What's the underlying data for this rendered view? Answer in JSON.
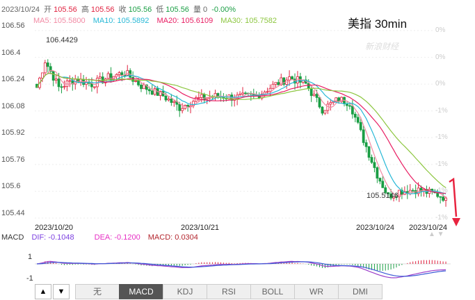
{
  "info": {
    "date": "2023/10/24",
    "open_label": "开",
    "open": "105.56",
    "high_label": "高",
    "high": "105.56",
    "close_label": "收",
    "close": "105.56",
    "low_label": "低",
    "low": "105.56",
    "vol_label": "量",
    "vol": "0",
    "change": "-0.00%"
  },
  "title": "美指 30min",
  "watermark": "新浪财经",
  "ma": {
    "ma5": "MA5: 105.5800",
    "ma10": "MA10: 105.5892",
    "ma20": "MA20: 105.6109",
    "ma30": "MA30: 105.7582"
  },
  "annotations": {
    "high": "106.4429",
    "low": "105.5146"
  },
  "x_labels": [
    "2023/10/20",
    "2023/10/21",
    "2023/10/24",
    "2023/10/24"
  ],
  "macd_legend": {
    "macd_label": "MACD",
    "dif": "DIF: -0.1048",
    "dea": "DEA: -0.1200",
    "macd": "MACD: 0.0304"
  },
  "macd_axis": [
    "1",
    "-1"
  ],
  "tabs": [
    "无",
    "MACD",
    "KDJ",
    "RSI",
    "BOLL",
    "WR",
    "DMI"
  ],
  "active_tab": "MACD",
  "colors": {
    "up": "#e0213f",
    "down": "#1a9e44",
    "ma5": "#f28aa4",
    "ma10": "#27b8d6",
    "ma20": "#e81d62",
    "ma30": "#8cc63f",
    "dif": "#9b3dc9",
    "dea": "#3a59d6"
  },
  "chart_data": {
    "type": "candlestick",
    "title": "美指 30min",
    "ylim": [
      105.44,
      106.56
    ],
    "y_ticks": [
      106.56,
      106.4,
      106.24,
      106.08,
      105.92,
      105.76,
      105.6,
      105.44
    ],
    "percent_ticks": [
      "0%",
      "0%",
      "0%",
      "-1%",
      "-1%",
      "-1%",
      "-1%",
      "-1%"
    ],
    "high_marker": 106.4429,
    "low_marker": 105.5146,
    "anchors": [
      [
        0,
        106.22
      ],
      [
        3,
        106.38
      ],
      [
        8,
        106.22
      ],
      [
        14,
        106.27
      ],
      [
        20,
        106.24
      ],
      [
        26,
        106.28
      ],
      [
        32,
        106.31
      ],
      [
        38,
        106.23
      ],
      [
        46,
        106.17
      ],
      [
        52,
        106.1
      ],
      [
        58,
        106.15
      ],
      [
        66,
        106.17
      ],
      [
        72,
        106.16
      ],
      [
        80,
        106.17
      ],
      [
        86,
        106.23
      ],
      [
        92,
        106.28
      ],
      [
        98,
        106.24
      ],
      [
        104,
        106.09
      ],
      [
        110,
        106.15
      ],
      [
        114,
        106.13
      ],
      [
        118,
        105.95
      ],
      [
        124,
        105.7
      ],
      [
        128,
        105.57
      ],
      [
        132,
        105.6
      ],
      [
        138,
        105.61
      ],
      [
        146,
        105.58
      ],
      [
        149,
        105.56
      ]
    ],
    "ma5_last": 105.58,
    "ma10_last": 105.5892,
    "ma20_last": 105.6109,
    "ma30_last": 105.7582,
    "macd": {
      "ylim": [
        -1.5,
        1.5
      ],
      "dif_last": -0.1048,
      "dea_last": -0.12,
      "macd_last": 0.0304
    }
  }
}
